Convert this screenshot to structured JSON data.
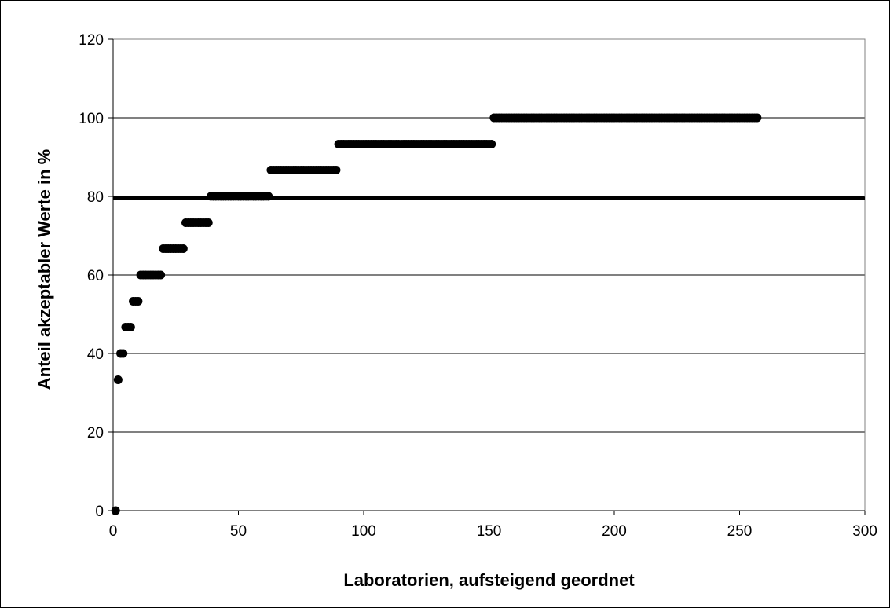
{
  "chart_data": {
    "type": "scatter",
    "title": "",
    "xlabel": "Laboratorien, aufsteigend geordnet",
    "ylabel": "Anteil akzeptabler Werte in %",
    "xlim": [
      0,
      300
    ],
    "ylim": [
      0,
      120
    ],
    "x_ticks": [
      0,
      50,
      100,
      150,
      200,
      250,
      300
    ],
    "y_ticks": [
      0,
      20,
      40,
      60,
      80,
      100,
      120
    ],
    "x_tick_labels": [
      "0",
      "50",
      "100",
      "150",
      "200",
      "250",
      "300"
    ],
    "y_tick_labels": [
      "0",
      "20",
      "40",
      "60",
      "80",
      "100",
      "120"
    ],
    "grid": "horizontal",
    "legend": "none",
    "point_color": "#000000",
    "reference_line": {
      "y": 79.5,
      "color": "#000000"
    },
    "series": [
      {
        "steps": [
          {
            "x_start": 1,
            "x_end": 1,
            "y": 0
          },
          {
            "x_start": 2,
            "x_end": 2,
            "y": 33.3
          },
          {
            "x_start": 3,
            "x_end": 4,
            "y": 40
          },
          {
            "x_start": 5,
            "x_end": 7,
            "y": 46.7
          },
          {
            "x_start": 8,
            "x_end": 10,
            "y": 53.3
          },
          {
            "x_start": 11,
            "x_end": 19,
            "y": 60
          },
          {
            "x_start": 20,
            "x_end": 28,
            "y": 66.7
          },
          {
            "x_start": 29,
            "x_end": 38,
            "y": 73.3
          },
          {
            "x_start": 39,
            "x_end": 62,
            "y": 80
          },
          {
            "x_start": 63,
            "x_end": 89,
            "y": 86.7
          },
          {
            "x_start": 90,
            "x_end": 151,
            "y": 93.3
          },
          {
            "x_start": 152,
            "x_end": 257,
            "y": 100
          }
        ]
      }
    ]
  }
}
